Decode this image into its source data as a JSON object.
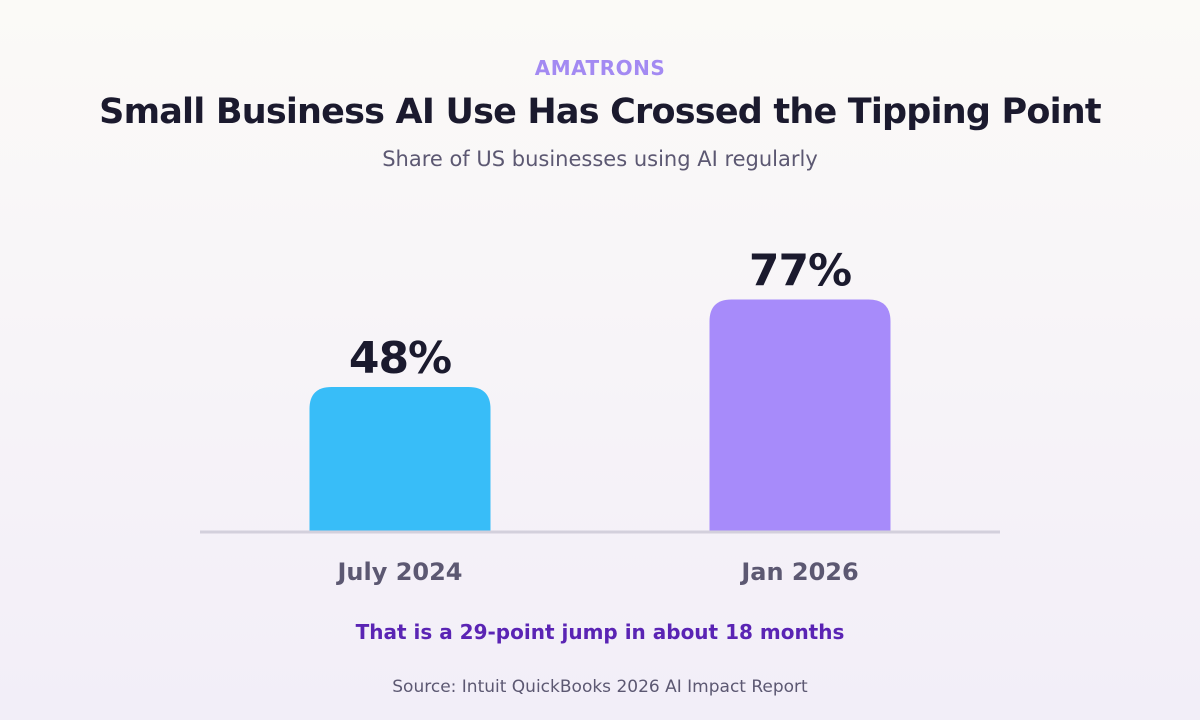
{
  "header": {
    "brand": "AMATRONS",
    "title": "Small Business AI Use Has Crossed the Tipping Point",
    "subtitle": "Share of US businesses using AI regularly"
  },
  "chart_data": {
    "type": "bar",
    "categories": [
      "July 2024",
      "Jan 2026"
    ],
    "values": [
      48,
      77
    ],
    "value_labels": [
      "48%",
      "77%"
    ],
    "unit": "%",
    "ylim": [
      0,
      100
    ],
    "colors": [
      "#38bdf8",
      "#a78bfa"
    ],
    "grid": false,
    "legend": "none",
    "title": "Small Business AI Use Has Crossed the Tipping Point",
    "subtitle": "Share of US businesses using AI regularly",
    "xlabel": "",
    "ylabel": ""
  },
  "colors": {
    "brand": "#a38af2",
    "title": "#1b1a2e",
    "muted": "#5c5872",
    "takeaway": "#5a24b4",
    "baseline": "#d3d0dc"
  },
  "footer": {
    "takeaway": "That is a 29-point jump in about 18 months",
    "source": "Source: Intuit QuickBooks 2026 AI Impact Report"
  }
}
